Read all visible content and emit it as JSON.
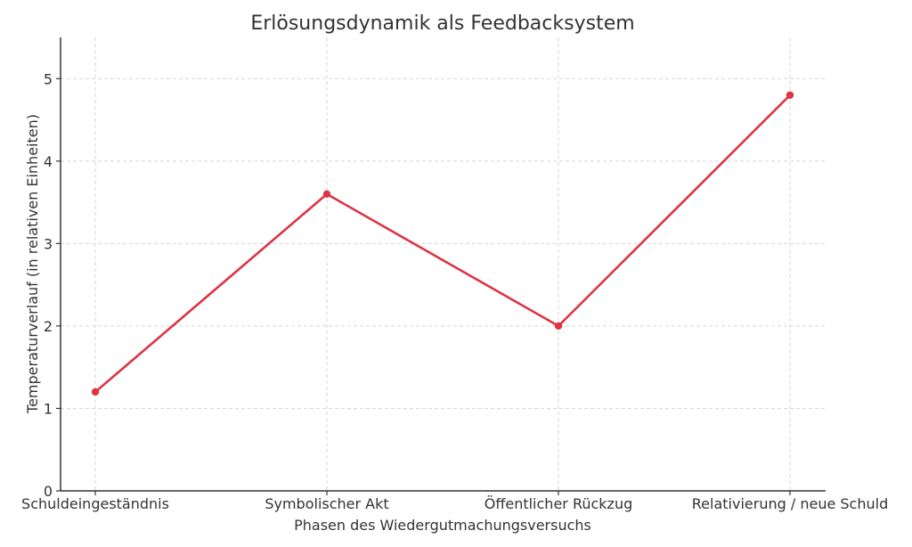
{
  "chart_data": {
    "type": "line",
    "title": "Erlösungsdynamik als Feedbacksystem",
    "xlabel": "Phasen des Wiedergutmachungsversuchs",
    "ylabel": "Temperaturverlauf (in relativen Einheiten)",
    "categories": [
      "Schuldeingeständnis",
      "Symbolischer Akt",
      "Öffentlicher Rückzug",
      "Relativierung / neue Schuld"
    ],
    "series": [
      {
        "values": [
          1.2,
          3.6,
          2.0,
          4.8
        ]
      }
    ],
    "ylim": [
      0,
      5.5
    ],
    "yticks": [
      0,
      1,
      2,
      3,
      4,
      5
    ],
    "grid": true,
    "line_color": "#dc3545"
  }
}
